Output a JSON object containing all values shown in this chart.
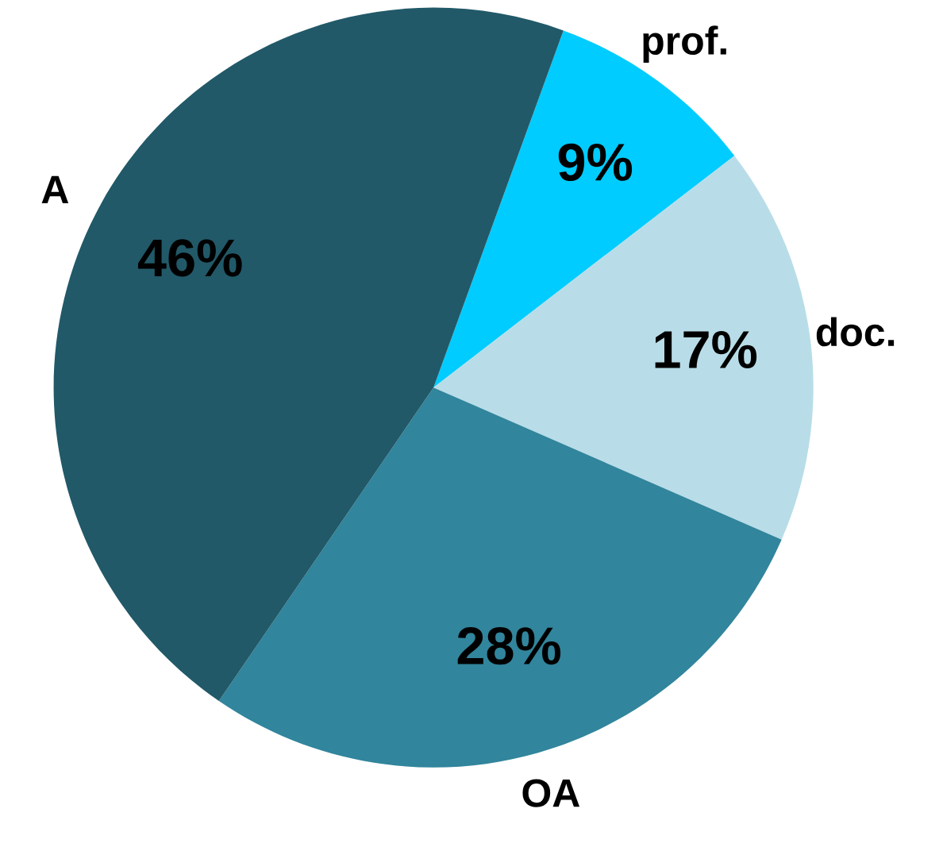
{
  "chart_data": {
    "type": "pie",
    "categories": [
      "prof.",
      "doc.",
      "OA",
      "A"
    ],
    "values": [
      9,
      17,
      28,
      46
    ],
    "colors": [
      "#00ccff",
      "#b8dde8",
      "#31859c",
      "#215968"
    ],
    "value_labels": [
      "9%",
      "17%",
      "28%",
      "46%"
    ],
    "legend": false
  }
}
